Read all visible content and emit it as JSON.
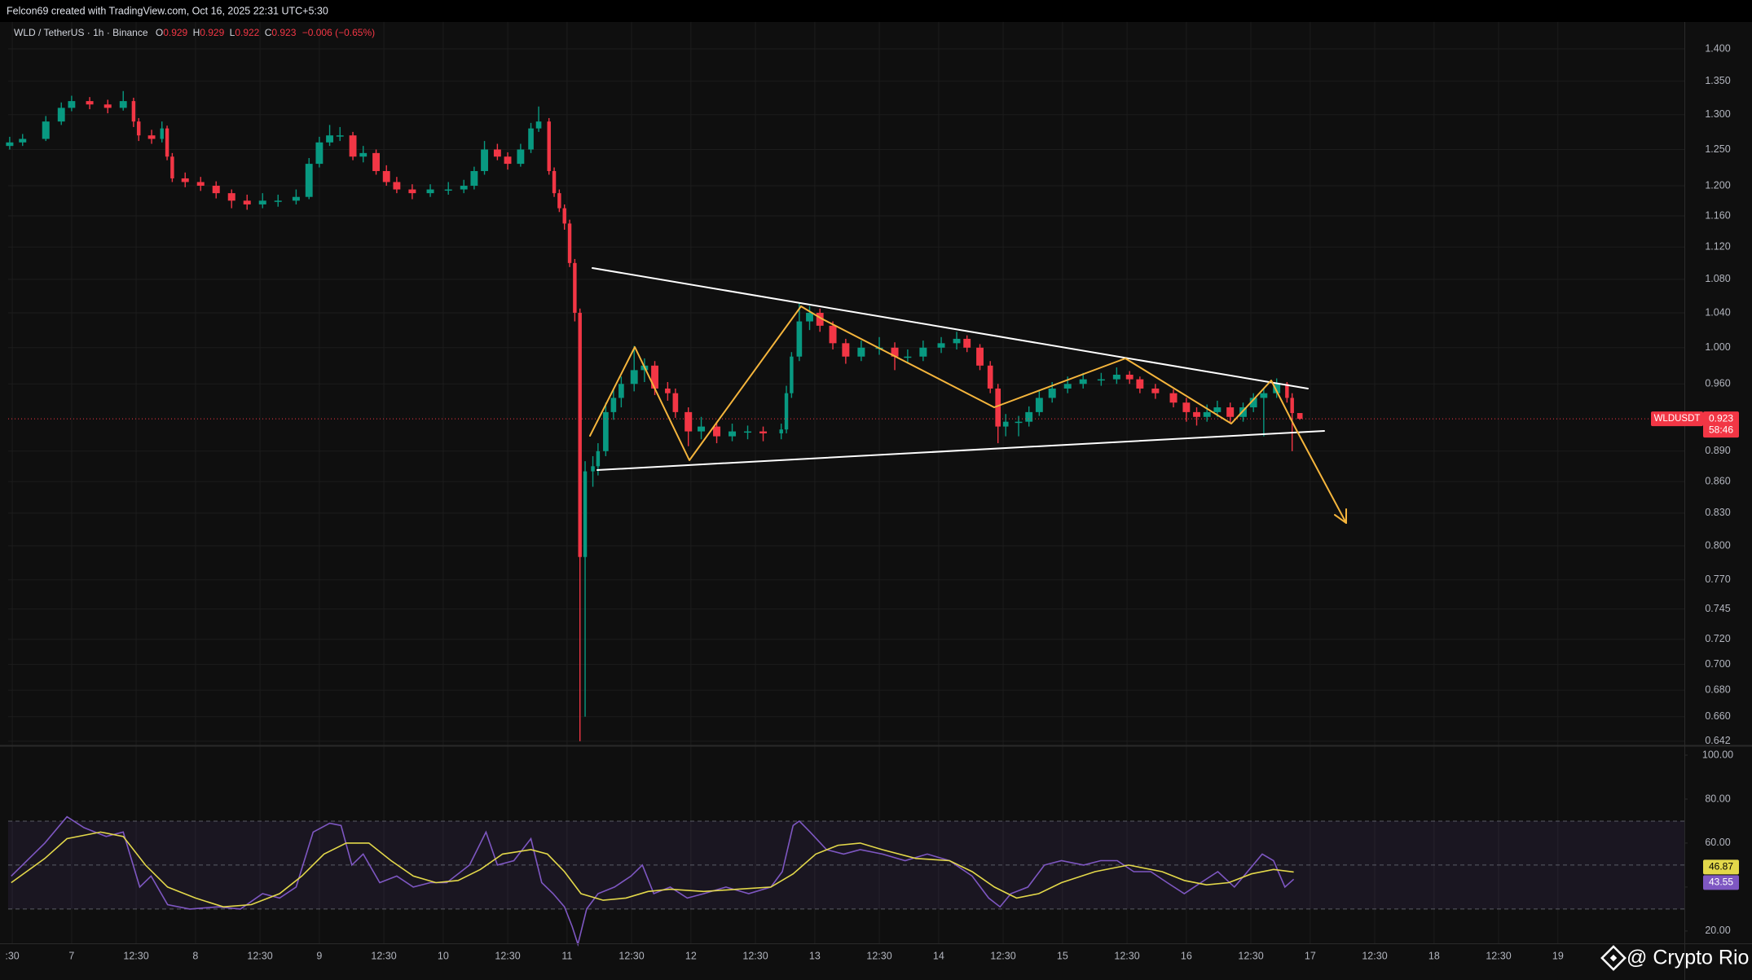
{
  "header": {
    "credit": "Felcon69 created with TradingView.com, Oct 16, 2025 22:31 UTC+5:30",
    "title": "WLD / TetherUS · 1h · Binance",
    "ohlc_labels": [
      "O",
      "H",
      "L",
      "C"
    ],
    "change": "−0.006 (−0.65%)"
  },
  "watermark": "@ Crypto Rio",
  "chart_data": [
    {
      "type": "candlestick",
      "log_scale": true,
      "grid": true,
      "up_color": "#089981",
      "down_color": "#f23645",
      "symbol_tag": "WLDUSDT",
      "countdown": "58:46",
      "xlim": [
        -12.3,
        312.5
      ],
      "xticks": [
        {
          "value": -11.5,
          "label": ":30"
        },
        {
          "value": 0,
          "label": "7"
        },
        {
          "value": 12.5,
          "label": "12:30"
        },
        {
          "value": 24,
          "label": "8"
        },
        {
          "value": 36.5,
          "label": "12:30"
        },
        {
          "value": 48,
          "label": "9"
        },
        {
          "value": 60.5,
          "label": "12:30"
        },
        {
          "value": 72,
          "label": "10"
        },
        {
          "value": 84.5,
          "label": "12:30"
        },
        {
          "value": 96,
          "label": "11"
        },
        {
          "value": 108.5,
          "label": "12:30"
        },
        {
          "value": 120,
          "label": "12"
        },
        {
          "value": 132.5,
          "label": "12:30"
        },
        {
          "value": 144,
          "label": "13"
        },
        {
          "value": 156.5,
          "label": "12:30"
        },
        {
          "value": 168,
          "label": "14"
        },
        {
          "value": 180.5,
          "label": "12:30"
        },
        {
          "value": 192,
          "label": "15"
        },
        {
          "value": 204.5,
          "label": "12:30"
        },
        {
          "value": 216,
          "label": "16"
        },
        {
          "value": 228.5,
          "label": "12:30"
        },
        {
          "value": 240,
          "label": "17"
        },
        {
          "value": 252.5,
          "label": "12:30"
        },
        {
          "value": 264,
          "label": "18"
        },
        {
          "value": 276.5,
          "label": "12:30"
        },
        {
          "value": 288,
          "label": "19"
        }
      ],
      "ylim": [
        0.639,
        1.439
      ],
      "yticks": [
        {
          "value": 1.4,
          "label": "1.400"
        },
        {
          "value": 1.35,
          "label": "1.350"
        },
        {
          "value": 1.3,
          "label": "1.300"
        },
        {
          "value": 1.25,
          "label": "1.250"
        },
        {
          "value": 1.2,
          "label": "1.200"
        },
        {
          "value": 1.16,
          "label": "1.160"
        },
        {
          "value": 1.12,
          "label": "1.120"
        },
        {
          "value": 1.08,
          "label": "1.080"
        },
        {
          "value": 1.04,
          "label": "1.040"
        },
        {
          "value": 1.0,
          "label": "1.000"
        },
        {
          "value": 0.96,
          "label": "0.960"
        },
        {
          "value": 0.89,
          "label": "0.890"
        },
        {
          "value": 0.86,
          "label": "0.860"
        },
        {
          "value": 0.83,
          "label": "0.830"
        },
        {
          "value": 0.8,
          "label": "0.800"
        },
        {
          "value": 0.77,
          "label": "0.770"
        },
        0.745,
        {
          "value": 0.72,
          "label": "0.720"
        },
        {
          "value": 0.7,
          "label": "0.700"
        },
        {
          "value": 0.68,
          "label": "0.680"
        },
        {
          "value": 0.66,
          "label": "0.660"
        },
        0.642
      ],
      "x": [
        -12,
        -9.5,
        -5,
        -2,
        0,
        3.5,
        7,
        10,
        12,
        13,
        15.5,
        17.5,
        18.5,
        19.5,
        22,
        25,
        28,
        31,
        34,
        37,
        40,
        43.5,
        46,
        48,
        50,
        52,
        54.5,
        56.5,
        59,
        61,
        63,
        66,
        69.5,
        73,
        76,
        78,
        80,
        82.5,
        84.5,
        87,
        89,
        90.5,
        92.5,
        93.5,
        94.5,
        95.5,
        96.5,
        97.5,
        98.5,
        99.5,
        101,
        102,
        103.5,
        105,
        106.5,
        109,
        111,
        113,
        115.5,
        117,
        119.5,
        122,
        125,
        128,
        131,
        134,
        137.5,
        138.5,
        139.5,
        141,
        143,
        145,
        147.5,
        150,
        153,
        156.5,
        159.5,
        162,
        165,
        168.5,
        171.5,
        173.5,
        176,
        178,
        179.5,
        181,
        183.5,
        185.5,
        187.5,
        190,
        193,
        196,
        199.5,
        202.5,
        205,
        207,
        210,
        213.5,
        216,
        218,
        220,
        222,
        224.5,
        227,
        229,
        231,
        233.5,
        235.5,
        236.5,
        238
      ],
      "open": [
        1.255,
        1.26,
        1.265,
        1.29,
        1.31,
        1.32,
        1.315,
        1.31,
        1.32,
        1.29,
        1.27,
        1.265,
        1.28,
        1.24,
        1.21,
        1.205,
        1.2,
        1.19,
        1.18,
        1.175,
        1.18,
        1.18,
        1.185,
        1.23,
        1.26,
        1.27,
        1.27,
        1.24,
        1.245,
        1.22,
        1.205,
        1.195,
        1.19,
        1.195,
        1.195,
        1.2,
        1.22,
        1.25,
        1.24,
        1.23,
        1.25,
        1.28,
        1.29,
        1.22,
        1.19,
        1.17,
        1.15,
        1.1,
        1.04,
        0.79,
        0.87,
        0.875,
        0.89,
        0.93,
        0.945,
        0.96,
        0.975,
        0.98,
        0.955,
        0.95,
        0.93,
        0.91,
        0.915,
        0.905,
        0.91,
        0.91,
        0.908,
        0.912,
        0.95,
        0.99,
        1.03,
        1.04,
        1.025,
        1.005,
        0.99,
        1.0,
        1.0,
        0.99,
        0.99,
        1.0,
        1.005,
        1.01,
        1.0,
        0.98,
        0.955,
        0.915,
        0.92,
        0.92,
        0.93,
        0.945,
        0.955,
        0.96,
        0.965,
        0.965,
        0.97,
        0.965,
        0.955,
        0.95,
        0.94,
        0.93,
        0.925,
        0.93,
        0.935,
        0.925,
        0.935,
        0.945,
        0.95,
        0.96,
        0.945,
        0.929
      ],
      "high": [
        1.268,
        1.272,
        1.298,
        1.318,
        1.328,
        1.326,
        1.322,
        1.335,
        1.325,
        1.295,
        1.278,
        1.29,
        1.284,
        1.245,
        1.218,
        1.212,
        1.206,
        1.195,
        1.188,
        1.19,
        1.188,
        1.195,
        1.238,
        1.268,
        1.285,
        1.282,
        1.275,
        1.255,
        1.25,
        1.228,
        1.212,
        1.202,
        1.202,
        1.205,
        1.208,
        1.226,
        1.262,
        1.258,
        1.246,
        1.258,
        1.288,
        1.312,
        1.295,
        1.225,
        1.195,
        1.175,
        1.155,
        1.105,
        1.045,
        0.88,
        0.885,
        0.898,
        0.94,
        0.955,
        0.968,
        1.002,
        0.988,
        0.985,
        0.962,
        0.955,
        0.935,
        0.925,
        0.92,
        0.918,
        0.916,
        0.915,
        0.918,
        0.958,
        0.995,
        1.052,
        1.048,
        1.045,
        1.03,
        1.01,
        1.008,
        1.012,
        1.006,
        0.998,
        1.008,
        1.012,
        1.018,
        1.014,
        1.004,
        0.985,
        0.96,
        0.928,
        0.926,
        0.936,
        0.952,
        0.962,
        0.968,
        0.972,
        0.972,
        0.978,
        0.974,
        0.968,
        0.96,
        0.954,
        0.945,
        0.935,
        0.938,
        0.942,
        0.94,
        0.94,
        0.95,
        0.955,
        0.966,
        0.962,
        0.95,
        0.929
      ],
      "low": [
        1.25,
        1.255,
        1.262,
        1.285,
        1.305,
        1.308,
        1.302,
        1.306,
        1.282,
        1.262,
        1.258,
        1.26,
        1.235,
        1.205,
        1.198,
        1.193,
        1.183,
        1.17,
        1.168,
        1.17,
        1.172,
        1.175,
        1.182,
        1.225,
        1.255,
        1.262,
        1.235,
        1.232,
        1.215,
        1.2,
        1.19,
        1.182,
        1.185,
        1.188,
        1.19,
        1.195,
        1.215,
        1.235,
        1.222,
        1.226,
        1.245,
        1.275,
        1.215,
        1.185,
        1.165,
        1.142,
        1.095,
        1.03,
        0.642,
        0.66,
        0.855,
        0.866,
        0.885,
        0.922,
        0.935,
        0.952,
        0.962,
        0.948,
        0.942,
        0.924,
        0.895,
        0.902,
        0.898,
        0.9,
        0.902,
        0.9,
        0.902,
        0.908,
        0.945,
        0.985,
        1.02,
        1.018,
        0.998,
        0.982,
        0.985,
        0.992,
        0.975,
        0.983,
        0.985,
        0.994,
        0.998,
        0.995,
        0.975,
        0.95,
        0.898,
        0.905,
        0.905,
        0.915,
        0.926,
        0.94,
        0.95,
        0.955,
        0.958,
        0.96,
        0.96,
        0.95,
        0.944,
        0.935,
        0.92,
        0.916,
        0.92,
        0.925,
        0.918,
        0.92,
        0.93,
        0.905,
        0.945,
        0.94,
        0.89,
        0.922
      ],
      "close": [
        1.26,
        1.265,
        1.29,
        1.31,
        1.32,
        1.315,
        1.31,
        1.32,
        1.29,
        1.27,
        1.265,
        1.28,
        1.24,
        1.21,
        1.205,
        1.2,
        1.19,
        1.18,
        1.175,
        1.18,
        1.18,
        1.185,
        1.23,
        1.26,
        1.27,
        1.27,
        1.24,
        1.245,
        1.22,
        1.205,
        1.195,
        1.19,
        1.195,
        1.195,
        1.2,
        1.22,
        1.25,
        1.24,
        1.23,
        1.25,
        1.28,
        1.29,
        1.22,
        1.19,
        1.17,
        1.15,
        1.1,
        1.04,
        0.79,
        0.87,
        0.875,
        0.89,
        0.93,
        0.945,
        0.96,
        0.975,
        0.98,
        0.955,
        0.95,
        0.93,
        0.91,
        0.915,
        0.905,
        0.91,
        0.91,
        0.908,
        0.912,
        0.95,
        0.99,
        1.03,
        1.04,
        1.025,
        1.005,
        0.99,
        1.0,
        1.0,
        0.99,
        0.99,
        1.0,
        1.005,
        1.01,
        1.0,
        0.98,
        0.955,
        0.915,
        0.92,
        0.92,
        0.93,
        0.945,
        0.955,
        0.96,
        0.965,
        0.965,
        0.97,
        0.965,
        0.955,
        0.95,
        0.94,
        0.93,
        0.925,
        0.93,
        0.935,
        0.925,
        0.935,
        0.945,
        0.95,
        0.96,
        0.945,
        0.929,
        0.923
      ]
    },
    {
      "type": "line",
      "ylim": [
        14.4,
        103.7
      ],
      "yticks": [
        {
          "value": 100,
          "label": "100.00"
        },
        {
          "value": 80,
          "label": "80.00"
        },
        {
          "value": 60,
          "label": "60.00"
        },
        {
          "value": 40,
          "label": "40.00"
        },
        {
          "value": 20,
          "label": "20.00"
        }
      ],
      "bands": [
        70,
        50,
        30
      ],
      "band_color": "#7e57c2",
      "series": [
        {
          "color": "#7e57c2",
          "x": [
            -11.7,
            -5.2,
            -0.9,
            2.4,
            6.7,
            10,
            13.2,
            15.4,
            18.6,
            22.9,
            28.4,
            32.7,
            37,
            40.3,
            43.5,
            46.8,
            50,
            52.2,
            54.3,
            56.5,
            59.7,
            63,
            66.2,
            69.5,
            72.7,
            77.1,
            80.3,
            82.5,
            85.7,
            89,
            91.1,
            93.3,
            95.5,
            97,
            98.1,
            99.8,
            102,
            105.2,
            108.4,
            110.6,
            112.8,
            116,
            119.3,
            122.5,
            126.8,
            131.2,
            135.5,
            137.7,
            139.8,
            141,
            143.1,
            146.3,
            149.6,
            152.8,
            157.1,
            161.5,
            165.8,
            170.1,
            174.5,
            177.7,
            179.9,
            182,
            185.3,
            188.5,
            191.8,
            196.1,
            199.4,
            202.6,
            205.8,
            209.1,
            212.3,
            215.6,
            218.8,
            222.1,
            225.3,
            227.5,
            230.7,
            232.9,
            235.1,
            236.8
          ],
          "values": [
            45,
            60,
            72,
            67,
            63,
            65,
            40,
            45,
            32,
            30,
            31,
            30,
            37,
            35,
            40,
            65,
            69,
            68,
            50,
            55,
            42,
            45,
            40,
            42,
            42,
            50,
            65,
            50,
            52,
            62,
            42,
            37,
            31,
            22,
            14,
            30,
            37,
            40,
            45,
            50,
            37,
            40,
            35,
            37,
            40,
            37,
            40,
            47,
            68,
            70,
            65,
            57,
            55,
            57,
            55,
            52,
            55,
            52,
            45,
            35,
            31,
            37,
            40,
            50,
            52,
            50,
            52,
            52,
            47,
            47,
            42,
            37,
            42,
            47,
            40,
            46,
            55,
            52,
            40,
            43.55
          ]
        },
        {
          "color": "#e3d84a",
          "x": [
            -11.7,
            -5.2,
            -0.9,
            5.6,
            10,
            14.3,
            18.6,
            24,
            29.4,
            34.8,
            40.3,
            44.6,
            48.9,
            53.2,
            57.6,
            61.9,
            66.2,
            70.6,
            74.9,
            79.2,
            83.5,
            89,
            92.2,
            95.5,
            98.7,
            103,
            107.4,
            111.7,
            116,
            122.5,
            129,
            135.5,
            139.8,
            144.2,
            148.5,
            152.8,
            157.1,
            163.6,
            170.1,
            174.5,
            178.8,
            183.1,
            187.4,
            191.8,
            198.3,
            204.8,
            211.3,
            215.6,
            219.9,
            224.2,
            228.6,
            232.9,
            236.8
          ],
          "values": [
            42,
            53,
            62,
            65,
            63,
            50,
            40,
            35,
            31,
            32,
            37,
            45,
            55,
            60,
            60,
            52,
            45,
            42,
            43,
            48,
            55,
            57,
            55,
            47,
            37,
            34,
            35,
            38,
            39,
            38,
            39,
            40,
            46,
            55,
            59,
            60,
            57,
            53,
            52,
            47,
            40,
            35,
            37,
            42,
            47,
            50,
            47,
            43,
            41,
            42,
            46,
            48,
            46.87
          ]
        }
      ]
    }
  ]
}
